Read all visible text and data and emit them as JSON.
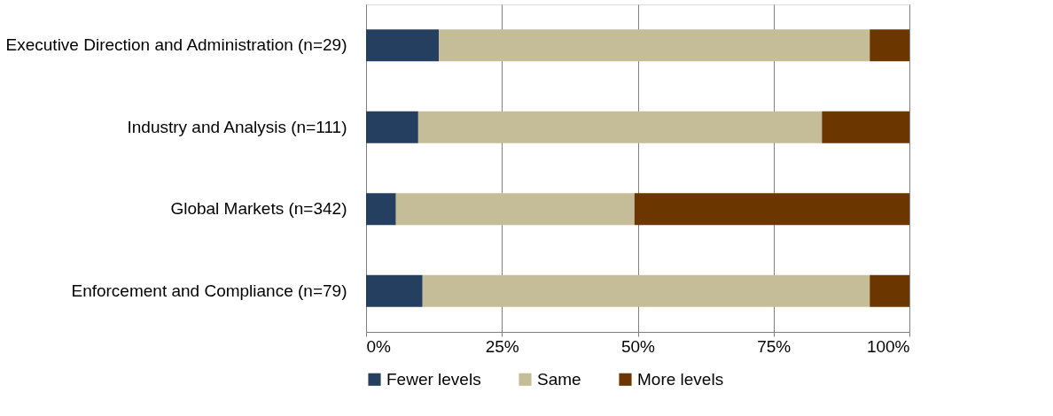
{
  "chart_data": {
    "type": "bar",
    "orientation": "horizontal",
    "stacked": true,
    "categories": [
      "Executive Direction and Administration (n=29)",
      "Industry and Analysis (n=111)",
      "Global Markets (n=342)",
      "Enforcement and Compliance (n=79)"
    ],
    "series": [
      {
        "name": "Fewer levels",
        "color": "#243f60",
        "values": [
          13.4,
          9.6,
          5.5,
          10.4
        ]
      },
      {
        "name": "Same",
        "color": "#c4bd97",
        "values": [
          79.3,
          74.3,
          43.9,
          82.3
        ]
      },
      {
        "name": "More levels",
        "color": "#6b3600",
        "values": [
          7.3,
          16.1,
          50.6,
          7.3
        ]
      }
    ],
    "xlim": [
      0,
      100
    ],
    "xticks": [
      {
        "value": 0,
        "label": "0%"
      },
      {
        "value": 25,
        "label": "25%"
      },
      {
        "value": 50,
        "label": "50%"
      },
      {
        "value": 75,
        "label": "75%"
      },
      {
        "value": 100,
        "label": "100%"
      }
    ],
    "grid": "x",
    "legend": "bottom"
  }
}
